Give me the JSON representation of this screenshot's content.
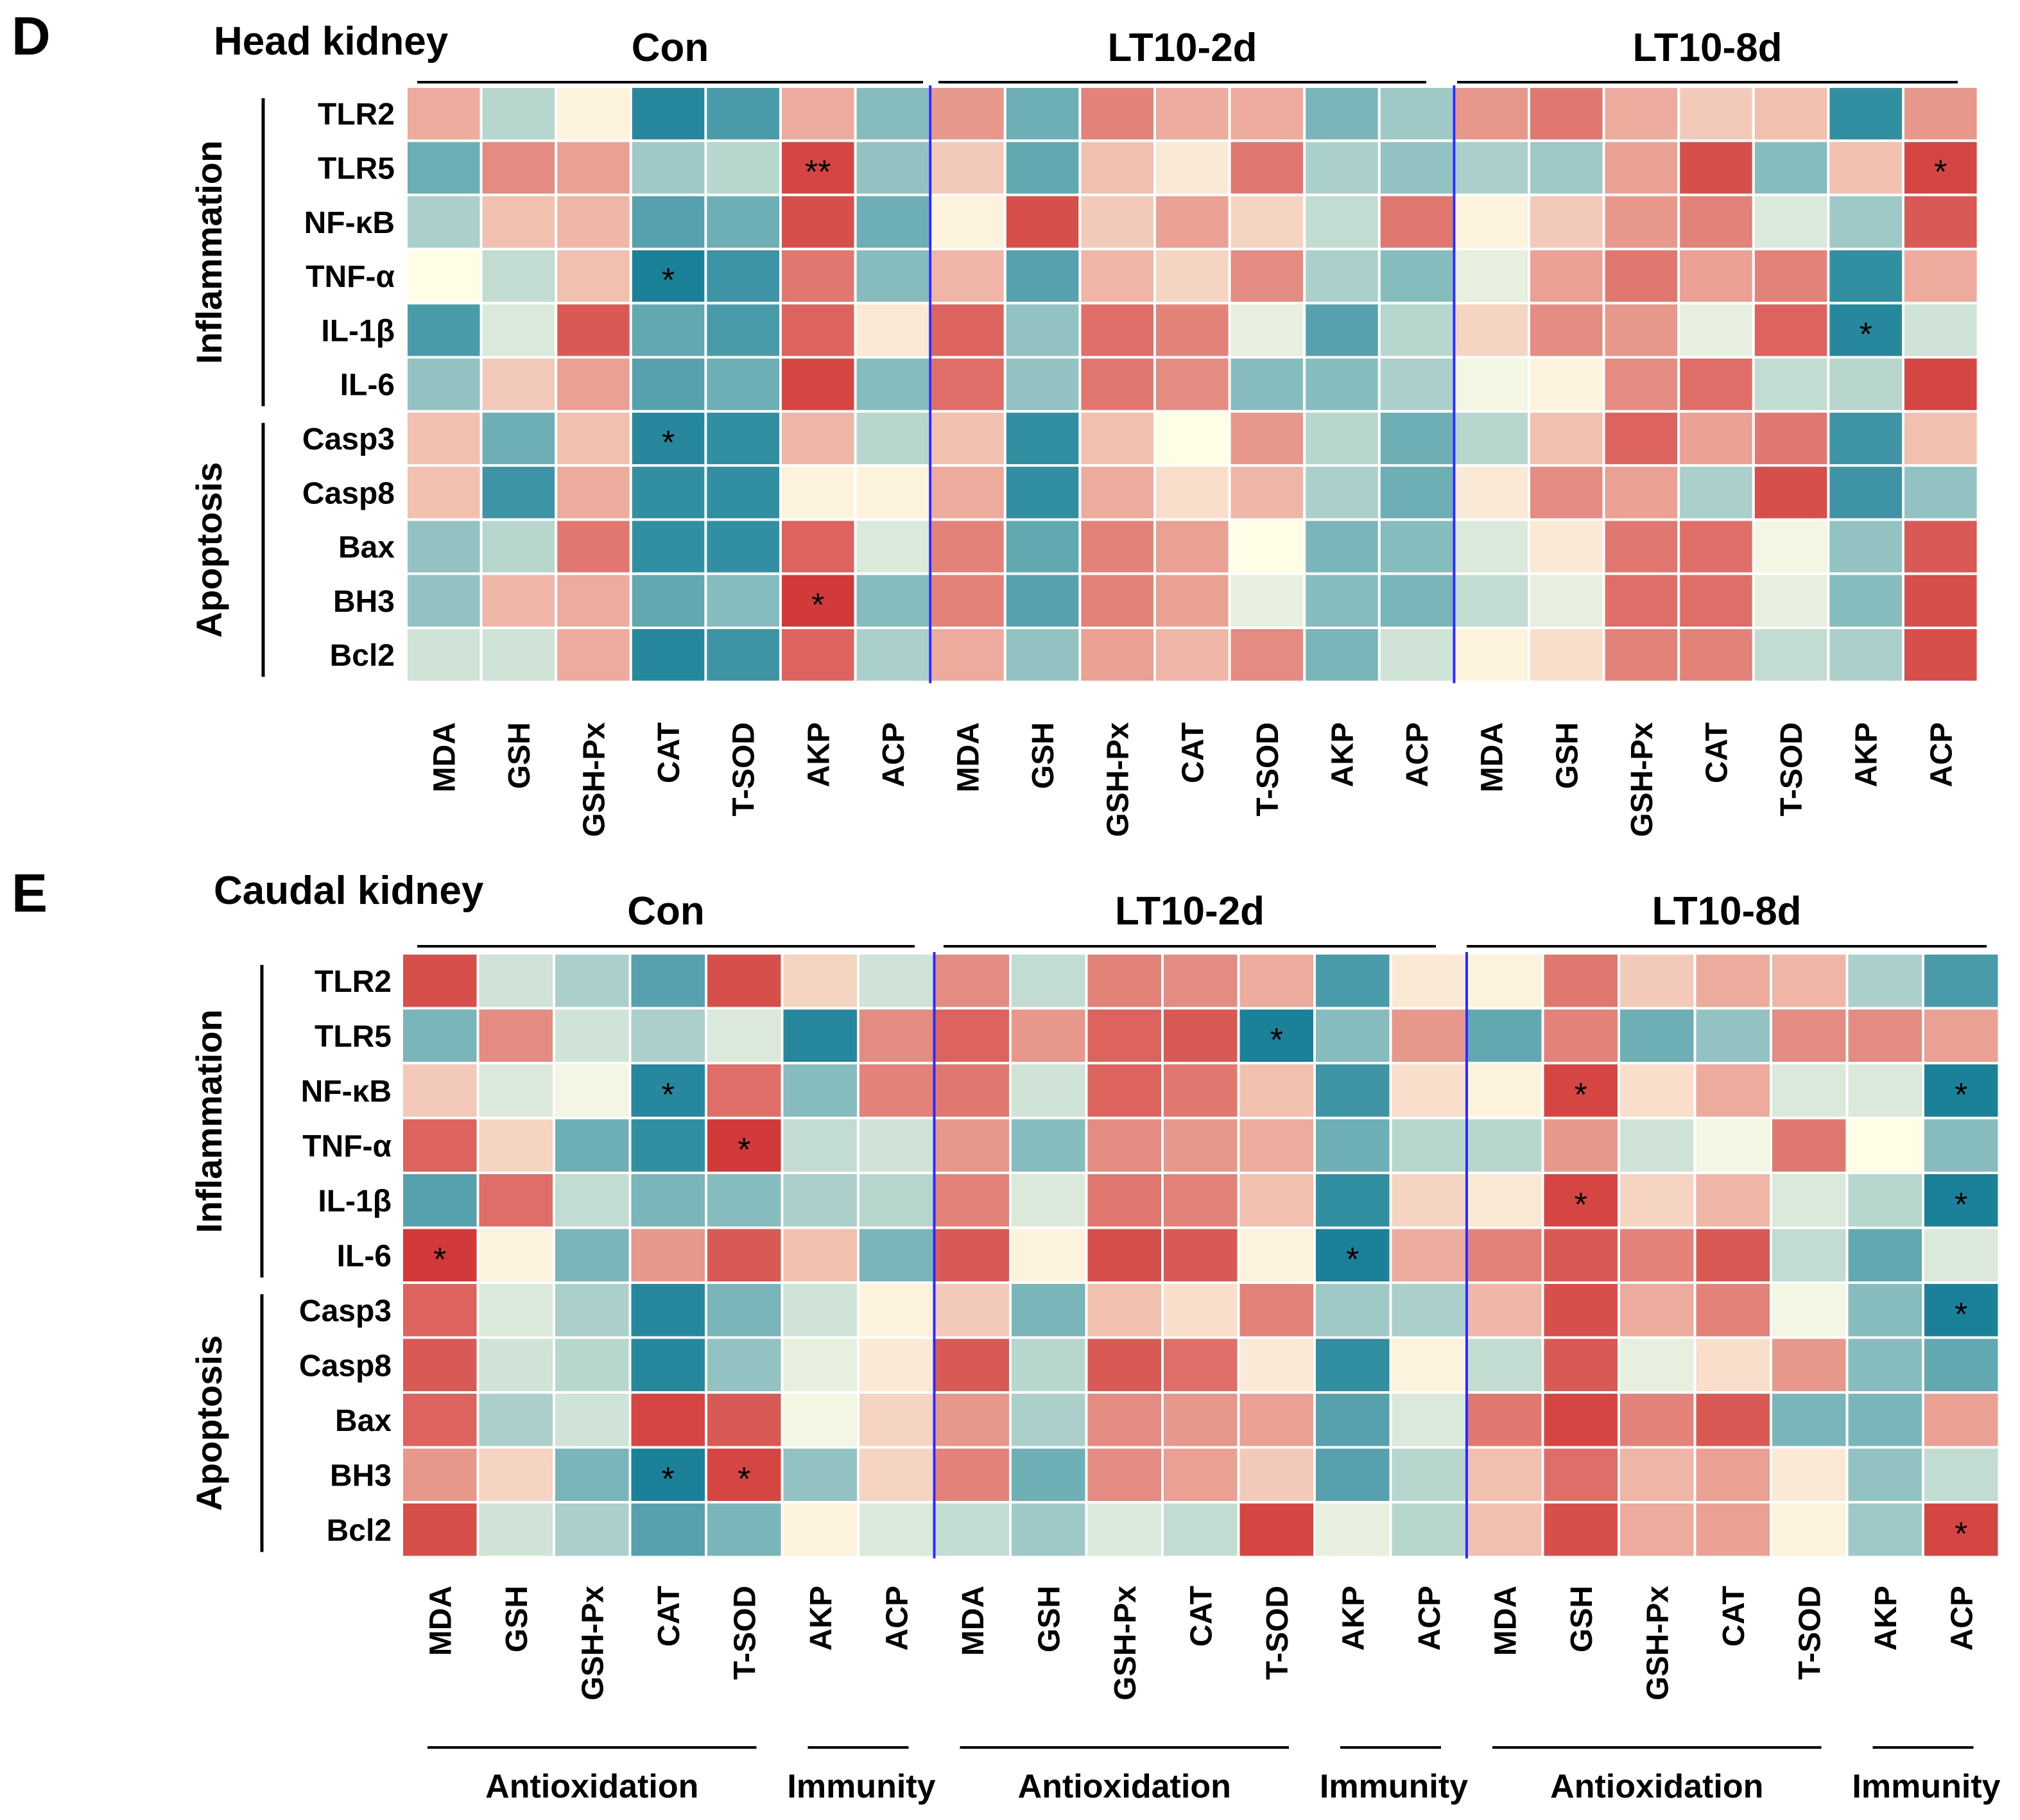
{
  "chart_data": [
    {
      "type": "heatmap",
      "panel_letter": "D",
      "title": "Head kidney",
      "groups": [
        "Con",
        "LT10-2d",
        "LT10-8d"
      ],
      "columns": [
        "MDA",
        "GSH",
        "GSH-Px",
        "CAT",
        "T-SOD",
        "AKP",
        "ACP"
      ],
      "rows": [
        "TLR2",
        "TLR5",
        "NF-κB",
        "TNF-α",
        "IL-1β",
        "IL-6",
        "Casp3",
        "Casp8",
        "Bax",
        "BH3",
        "Bcl2"
      ],
      "row_groups": [
        {
          "label": "Inflammation",
          "rows": [
            "TLR2",
            "TLR5",
            "NF-κB",
            "TNF-α",
            "IL-1β",
            "IL-6"
          ]
        },
        {
          "label": "Apoptosis",
          "rows": [
            "Casp3",
            "Casp8",
            "Bax",
            "BH3",
            "Bcl2"
          ]
        }
      ],
      "color_scale": {
        "min": -1,
        "max": 1,
        "negative": "#0e7a95",
        "neutral": "#fffde6",
        "positive": "#d03030"
      },
      "values": [
        [
          0.4,
          -0.3,
          0.05,
          -0.9,
          -0.75,
          0.4,
          -0.5,
          0.5,
          -0.6,
          0.6,
          0.4,
          0.4,
          -0.55,
          -0.4,
          0.5,
          0.65,
          0.4,
          0.25,
          0.3,
          -0.85,
          0.5
        ],
        [
          -0.6,
          0.55,
          0.45,
          -0.4,
          -0.3,
          0.9,
          -0.45,
          0.25,
          -0.65,
          0.3,
          0.1,
          0.65,
          -0.35,
          -0.45,
          -0.35,
          -0.4,
          0.45,
          0.85,
          -0.5,
          0.3,
          0.9
        ],
        [
          -0.35,
          0.3,
          0.35,
          -0.7,
          -0.6,
          0.85,
          -0.6,
          0.05,
          0.85,
          0.25,
          0.45,
          0.2,
          -0.25,
          0.65,
          0.05,
          0.25,
          0.5,
          0.6,
          -0.15,
          -0.4,
          0.8
        ],
        [
          0.0,
          -0.25,
          0.3,
          -0.95,
          -0.8,
          0.65,
          -0.5,
          0.35,
          -0.7,
          0.35,
          0.2,
          0.55,
          -0.35,
          -0.5,
          -0.1,
          0.45,
          0.65,
          0.45,
          0.6,
          -0.85,
          0.4
        ],
        [
          -0.75,
          -0.15,
          0.8,
          -0.65,
          -0.75,
          0.75,
          0.1,
          0.75,
          -0.45,
          0.7,
          0.6,
          -0.1,
          -0.7,
          -0.3,
          0.2,
          0.55,
          0.5,
          -0.1,
          0.75,
          -0.9,
          -0.2
        ],
        [
          -0.45,
          0.25,
          0.45,
          -0.7,
          -0.6,
          0.9,
          -0.5,
          0.7,
          -0.45,
          0.65,
          0.55,
          -0.5,
          -0.5,
          -0.35,
          -0.05,
          0.05,
          0.55,
          0.7,
          -0.25,
          -0.3,
          0.9
        ],
        [
          0.3,
          -0.6,
          0.3,
          -0.9,
          -0.85,
          0.35,
          -0.3,
          0.3,
          -0.85,
          0.3,
          0.0,
          0.5,
          -0.3,
          -0.6,
          -0.3,
          0.3,
          0.75,
          0.45,
          0.65,
          -0.8,
          0.3
        ],
        [
          0.3,
          -0.8,
          0.4,
          -0.85,
          -0.85,
          0.05,
          0.05,
          0.4,
          -0.85,
          0.4,
          0.15,
          0.35,
          -0.35,
          -0.6,
          0.1,
          0.55,
          0.45,
          -0.35,
          0.85,
          -0.8,
          -0.45
        ],
        [
          -0.45,
          -0.3,
          0.65,
          -0.85,
          -0.85,
          0.75,
          -0.15,
          0.6,
          -0.65,
          0.6,
          0.45,
          0.0,
          -0.55,
          -0.5,
          -0.15,
          0.1,
          0.65,
          0.7,
          -0.05,
          -0.45,
          0.8
        ],
        [
          -0.45,
          0.35,
          0.4,
          -0.65,
          -0.5,
          0.95,
          -0.5,
          0.6,
          -0.7,
          0.6,
          0.45,
          -0.1,
          -0.5,
          -0.55,
          -0.25,
          -0.1,
          0.7,
          0.7,
          -0.1,
          -0.5,
          0.85
        ],
        [
          -0.2,
          -0.2,
          0.4,
          -0.9,
          -0.8,
          0.75,
          -0.35,
          0.4,
          -0.45,
          0.45,
          0.35,
          0.55,
          -0.55,
          -0.2,
          0.05,
          0.15,
          0.6,
          0.6,
          -0.25,
          -0.35,
          0.85
        ]
      ],
      "significance": [
        {
          "row": 1,
          "col": 5,
          "mark": "**"
        },
        {
          "row": 1,
          "col": 20,
          "mark": "*"
        },
        {
          "row": 3,
          "col": 3,
          "mark": "*"
        },
        {
          "row": 4,
          "col": 19,
          "mark": "*"
        },
        {
          "row": 6,
          "col": 3,
          "mark": "*"
        },
        {
          "row": 9,
          "col": 5,
          "mark": "*"
        }
      ]
    },
    {
      "type": "heatmap",
      "panel_letter": "E",
      "title": "Caudal kidney",
      "groups": [
        "Con",
        "LT10-2d",
        "LT10-8d"
      ],
      "columns": [
        "MDA",
        "GSH",
        "GSH-Px",
        "CAT",
        "T-SOD",
        "AKP",
        "ACP"
      ],
      "rows": [
        "TLR2",
        "TLR5",
        "NF-κB",
        "TNF-α",
        "IL-1β",
        "IL-6",
        "Casp3",
        "Casp8",
        "Bax",
        "BH3",
        "Bcl2"
      ],
      "row_groups": [
        {
          "label": "Inflammation",
          "rows": [
            "TLR2",
            "TLR5",
            "NF-κB",
            "TNF-α",
            "IL-1β",
            "IL-6"
          ]
        },
        {
          "label": "Apoptosis",
          "rows": [
            "Casp3",
            "Casp8",
            "Bax",
            "BH3",
            "Bcl2"
          ]
        }
      ],
      "column_categories": [
        {
          "label": "Antioxidation",
          "group": 0,
          "columns": [
            "MDA",
            "GSH",
            "GSH-Px",
            "CAT",
            "T-SOD"
          ]
        },
        {
          "label": "Immunity",
          "group": 0,
          "columns": [
            "AKP",
            "ACP"
          ]
        },
        {
          "label": "Antioxidation",
          "group": 1,
          "columns": [
            "MDA",
            "GSH",
            "GSH-Px",
            "CAT",
            "T-SOD"
          ]
        },
        {
          "label": "Immunity",
          "group": 1,
          "columns": [
            "AKP",
            "ACP"
          ]
        },
        {
          "label": "Antioxidation",
          "group": 2,
          "columns": [
            "MDA",
            "GSH",
            "GSH-Px",
            "CAT",
            "T-SOD"
          ]
        },
        {
          "label": "Immunity",
          "group": 2,
          "columns": [
            "AKP",
            "ACP"
          ]
        }
      ],
      "color_scale": {
        "min": -1,
        "max": 1,
        "negative": "#0e7a95",
        "neutral": "#fffde6",
        "positive": "#d03030"
      },
      "values": [
        [
          0.85,
          -0.2,
          -0.35,
          -0.7,
          0.85,
          0.2,
          -0.2,
          0.55,
          -0.25,
          0.6,
          0.55,
          0.4,
          -0.75,
          0.1,
          0.05,
          0.65,
          0.25,
          0.4,
          0.35,
          -0.35,
          -0.75
        ],
        [
          -0.55,
          0.55,
          -0.2,
          -0.35,
          -0.15,
          -0.9,
          0.55,
          0.75,
          0.5,
          0.75,
          0.8,
          -0.95,
          -0.5,
          0.5,
          -0.65,
          0.6,
          -0.6,
          -0.45,
          0.55,
          0.55,
          0.45
        ],
        [
          0.25,
          -0.15,
          -0.05,
          -0.9,
          0.7,
          -0.5,
          0.6,
          0.65,
          -0.2,
          0.75,
          0.65,
          0.3,
          -0.8,
          0.15,
          0.05,
          0.9,
          0.15,
          0.4,
          -0.15,
          -0.15,
          -0.95
        ],
        [
          0.75,
          0.2,
          -0.6,
          -0.85,
          0.95,
          -0.25,
          -0.2,
          0.5,
          -0.5,
          0.55,
          0.5,
          0.4,
          -0.6,
          -0.3,
          -0.3,
          0.5,
          -0.2,
          -0.05,
          0.65,
          0.0,
          -0.5
        ],
        [
          -0.7,
          0.7,
          -0.25,
          -0.55,
          -0.5,
          -0.35,
          -0.3,
          0.6,
          -0.15,
          0.65,
          0.6,
          0.3,
          -0.85,
          0.2,
          0.1,
          0.9,
          0.2,
          0.35,
          -0.15,
          -0.3,
          -0.95
        ],
        [
          0.95,
          0.05,
          -0.55,
          0.5,
          0.8,
          0.3,
          -0.55,
          0.8,
          0.05,
          0.85,
          0.8,
          0.05,
          -0.95,
          0.4,
          0.6,
          0.8,
          0.6,
          0.8,
          -0.25,
          -0.65,
          -0.15
        ],
        [
          0.75,
          -0.15,
          -0.35,
          -0.9,
          -0.55,
          -0.2,
          0.05,
          0.25,
          -0.55,
          0.3,
          0.15,
          0.6,
          -0.4,
          -0.35,
          0.35,
          0.85,
          0.4,
          0.6,
          -0.05,
          -0.5,
          -0.95
        ],
        [
          0.8,
          -0.2,
          -0.3,
          -0.9,
          -0.45,
          -0.1,
          0.1,
          0.8,
          -0.3,
          0.8,
          0.7,
          0.1,
          -0.85,
          0.05,
          -0.25,
          0.8,
          -0.1,
          0.15,
          0.5,
          -0.5,
          -0.65
        ],
        [
          0.75,
          -0.35,
          -0.2,
          0.9,
          0.8,
          -0.05,
          0.2,
          0.5,
          -0.35,
          0.55,
          0.5,
          0.45,
          -0.7,
          -0.15,
          0.65,
          0.9,
          0.6,
          0.8,
          -0.55,
          -0.55,
          0.45
        ],
        [
          0.5,
          0.2,
          -0.55,
          -0.95,
          0.9,
          -0.45,
          0.2,
          0.6,
          -0.6,
          0.55,
          0.45,
          0.25,
          -0.7,
          -0.3,
          0.3,
          0.7,
          0.35,
          0.45,
          0.1,
          -0.45,
          -0.25
        ],
        [
          0.85,
          -0.2,
          -0.35,
          -0.7,
          -0.55,
          0.05,
          -0.15,
          -0.25,
          -0.4,
          -0.15,
          -0.25,
          0.9,
          -0.1,
          -0.3,
          0.3,
          0.85,
          0.4,
          0.45,
          0.05,
          -0.4,
          0.9
        ]
      ],
      "significance": [
        {
          "row": 1,
          "col": 11,
          "mark": "*"
        },
        {
          "row": 2,
          "col": 3,
          "mark": "*"
        },
        {
          "row": 2,
          "col": 15,
          "mark": "*"
        },
        {
          "row": 2,
          "col": 20,
          "mark": "*"
        },
        {
          "row": 3,
          "col": 4,
          "mark": "*"
        },
        {
          "row": 4,
          "col": 15,
          "mark": "*"
        },
        {
          "row": 4,
          "col": 20,
          "mark": "*"
        },
        {
          "row": 5,
          "col": 0,
          "mark": "*"
        },
        {
          "row": 5,
          "col": 12,
          "mark": "*"
        },
        {
          "row": 6,
          "col": 20,
          "mark": "*"
        },
        {
          "row": 9,
          "col": 3,
          "mark": "*"
        },
        {
          "row": 9,
          "col": 4,
          "mark": "*"
        },
        {
          "row": 10,
          "col": 20,
          "mark": "*"
        }
      ]
    }
  ]
}
